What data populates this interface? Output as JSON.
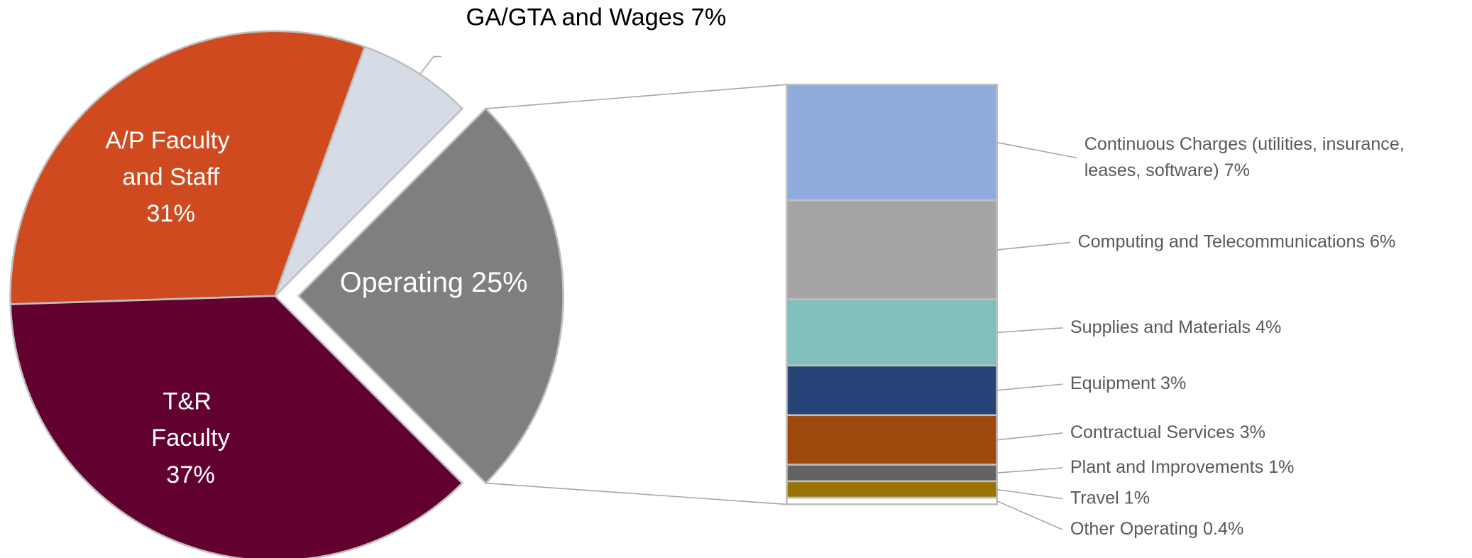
{
  "chart_data": {
    "type": "pie-of-bar",
    "categories": [
      "GA/GTA and Wages",
      "A/P Faculty and Staff",
      "T&R Faculty",
      "Operating"
    ],
    "values": [
      7,
      31,
      37,
      25
    ],
    "value_labels": [
      "7%",
      "31%",
      "37%",
      "25%"
    ],
    "colors": [
      "#d6dce5",
      "#d04a1f",
      "#620030",
      "#7f7f7f"
    ],
    "breakdown": {
      "categories": [
        "Continuous Charges (utilities, insurance, leases, software)",
        "Computing and Telecommunications",
        "Supplies and Materials",
        "Equipment",
        "Contractual Services",
        "Plant and Improvements",
        "Travel",
        "Other Operating"
      ],
      "values": [
        7,
        6,
        4,
        3,
        3,
        1,
        1,
        0.4
      ],
      "value_labels": [
        "7%",
        "6%",
        "4%",
        "3%",
        "3%",
        "1%",
        "1%",
        "0.4%"
      ],
      "colors": [
        "#8faadc",
        "#a5a5a5",
        "#7fbfbc",
        "#264478",
        "#9e480e",
        "#636363",
        "#997300",
        "#ffffff"
      ]
    }
  }
}
